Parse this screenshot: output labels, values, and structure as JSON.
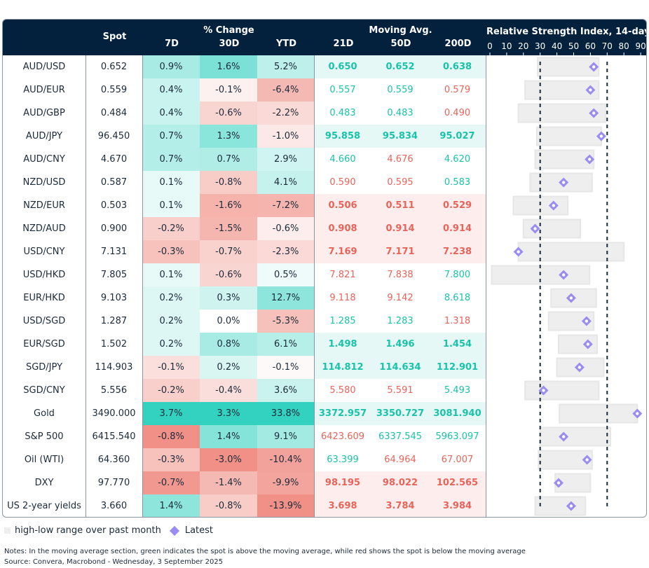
{
  "header": {
    "spot": "Spot",
    "pct_change": "% Change",
    "d7": "7D",
    "d30": "30D",
    "ytd": "YTD",
    "moving_avg": "Moving Avg.",
    "ma21": "21D",
    "ma50": "50D",
    "ma200": "200D",
    "rsi_title": "Relative Strength Index, 14-day"
  },
  "colors": {
    "positive": "#33d1c0",
    "negative": "#ef8a80",
    "ma_above_text": "#19c3a8",
    "ma_below_text": "#e8645a",
    "ma_above_bg": "#e6f8f6",
    "ma_below_bg": "#fdeeed",
    "range_bar": "#eeeeee",
    "latest_marker": "#9a8cf0",
    "header_bg": "#03203c"
  },
  "chart_data": {
    "type": "table",
    "title": "Relative Strength Index, 14-day",
    "xlim": [
      0,
      90
    ],
    "xticks": [
      "0",
      "10",
      "20",
      "30",
      "40",
      "50",
      "60",
      "70",
      "80",
      "90"
    ],
    "reference_lines": [
      30,
      70
    ],
    "rows": [
      {
        "name": "AUD/USD",
        "spot": "0.652",
        "d7": "0.9%",
        "d30": "1.6%",
        "ytd": "5.2%",
        "ma21": "0.650",
        "ma50": "0.652",
        "ma200": "0.638",
        "rsi_low": 28.5,
        "rsi_high": 65,
        "rsi_latest": 62
      },
      {
        "name": "AUD/EUR",
        "spot": "0.559",
        "d7": "0.4%",
        "d30": "-0.1%",
        "ytd": "-6.4%",
        "ma21": "0.557",
        "ma50": "0.559",
        "ma200": "0.579",
        "rsi_low": 21,
        "rsi_high": 65,
        "rsi_latest": 60
      },
      {
        "name": "AUD/GBP",
        "spot": "0.484",
        "d7": "0.4%",
        "d30": "-0.6%",
        "ytd": "-2.2%",
        "ma21": "0.483",
        "ma50": "0.483",
        "ma200": "0.490",
        "rsi_low": 17,
        "rsi_high": 69,
        "rsi_latest": 62
      },
      {
        "name": "AUD/JPY",
        "spot": "96.450",
        "d7": "0.7%",
        "d30": "1.3%",
        "ytd": "-1.0%",
        "ma21": "95.858",
        "ma50": "95.834",
        "ma200": "95.027",
        "rsi_low": 28,
        "rsi_high": 66.5,
        "rsi_latest": 66.5
      },
      {
        "name": "AUD/CNY",
        "spot": "4.670",
        "d7": "0.7%",
        "d30": "0.7%",
        "ytd": "2.9%",
        "ma21": "4.660",
        "ma50": "4.676",
        "ma200": "4.620",
        "rsi_low": 27,
        "rsi_high": 62,
        "rsi_latest": 59.5
      },
      {
        "name": "NZD/USD",
        "spot": "0.587",
        "d7": "0.1%",
        "d30": "-0.8%",
        "ytd": "4.1%",
        "ma21": "0.590",
        "ma50": "0.595",
        "ma200": "0.583",
        "rsi_low": 24,
        "rsi_high": 61,
        "rsi_latest": 44
      },
      {
        "name": "NZD/EUR",
        "spot": "0.503",
        "d7": "0.1%",
        "d30": "-1.6%",
        "ytd": "-7.2%",
        "ma21": "0.506",
        "ma50": "0.511",
        "ma200": "0.529",
        "rsi_low": 14,
        "rsi_high": 46.5,
        "rsi_latest": 38
      },
      {
        "name": "NZD/AUD",
        "spot": "0.900",
        "d7": "-0.2%",
        "d30": "-1.5%",
        "ytd": "-0.6%",
        "ma21": "0.908",
        "ma50": "0.914",
        "ma200": "0.914",
        "rsi_low": 20,
        "rsi_high": 54,
        "rsi_latest": 27
      },
      {
        "name": "USD/CNY",
        "spot": "7.131",
        "d7": "-0.3%",
        "d30": "-0.7%",
        "ytd": "-2.3%",
        "ma21": "7.169",
        "ma50": "7.171",
        "ma200": "7.238",
        "rsi_low": 17,
        "rsi_high": 80,
        "rsi_latest": 17
      },
      {
        "name": "USD/HKD",
        "spot": "7.805",
        "d7": "0.1%",
        "d30": "-0.6%",
        "ytd": "0.5%",
        "ma21": "7.821",
        "ma50": "7.838",
        "ma200": "7.800",
        "rsi_low": 1,
        "rsi_high": 59.5,
        "rsi_latest": 44
      },
      {
        "name": "EUR/HKD",
        "spot": "9.103",
        "d7": "0.2%",
        "d30": "0.3%",
        "ytd": "12.7%",
        "ma21": "9.118",
        "ma50": "9.142",
        "ma200": "8.618",
        "rsi_low": 36.5,
        "rsi_high": 63.5,
        "rsi_latest": 48.5
      },
      {
        "name": "USD/SGD",
        "spot": "1.287",
        "d7": "0.2%",
        "d30": "0.0%",
        "ytd": "-5.3%",
        "ma21": "1.285",
        "ma50": "1.283",
        "ma200": "1.318",
        "rsi_low": 35,
        "rsi_high": 62,
        "rsi_latest": 57.7
      },
      {
        "name": "EUR/SGD",
        "spot": "1.502",
        "d7": "0.2%",
        "d30": "0.8%",
        "ytd": "6.1%",
        "ma21": "1.498",
        "ma50": "1.496",
        "ma200": "1.454",
        "rsi_low": 41,
        "rsi_high": 64,
        "rsi_latest": 58.5
      },
      {
        "name": "SGD/JPY",
        "spot": "114.903",
        "d7": "-0.1%",
        "d30": "0.2%",
        "ytd": "-0.1%",
        "ma21": "114.812",
        "ma50": "114.634",
        "ma200": "112.901",
        "rsi_low": 40,
        "rsi_high": 68,
        "rsi_latest": 53.5
      },
      {
        "name": "SGD/CNY",
        "spot": "5.556",
        "d7": "-0.2%",
        "d30": "-0.4%",
        "ytd": "3.6%",
        "ma21": "5.580",
        "ma50": "5.591",
        "ma200": "5.493",
        "rsi_low": 21,
        "rsi_high": 65,
        "rsi_latest": 32
      },
      {
        "name": "Gold",
        "spot": "3490.000",
        "d7": "3.7%",
        "d30": "3.3%",
        "ytd": "33.8%",
        "ma21": "3372.957",
        "ma50": "3350.727",
        "ma200": "3081.940",
        "rsi_low": 41.5,
        "rsi_high": 88,
        "rsi_latest": 88
      },
      {
        "name": "S&P 500",
        "spot": "6415.540",
        "d7": "-0.8%",
        "d30": "1.4%",
        "ytd": "9.1%",
        "ma21": "6423.609",
        "ma50": "6337.545",
        "ma200": "5963.097",
        "rsi_low": 30,
        "rsi_high": 72,
        "rsi_latest": 44
      },
      {
        "name": "Oil (WTI)",
        "spot": "64.360",
        "d7": "-0.3%",
        "d30": "-3.0%",
        "ytd": "-10.4%",
        "ma21": "63.399",
        "ma50": "64.964",
        "ma200": "67.007",
        "rsi_low": 29,
        "rsi_high": 61,
        "rsi_latest": 58
      },
      {
        "name": "DXY",
        "spot": "97.770",
        "d7": "-0.7%",
        "d30": "-1.4%",
        "ytd": "-9.9%",
        "ma21": "98.195",
        "ma50": "98.022",
        "ma200": "102.565",
        "rsi_low": 39,
        "rsi_high": 60,
        "rsi_latest": 41
      },
      {
        "name": "US 2-year yields",
        "spot": "3.660",
        "d7": "1.4%",
        "d30": "-0.8%",
        "ytd": "-13.9%",
        "ma21": "3.698",
        "ma50": "3.784",
        "ma200": "3.984",
        "rsi_low": 27,
        "rsi_high": 57,
        "rsi_latest": 48.5
      }
    ]
  },
  "legend": {
    "range": "high-low range over past month",
    "latest": "Latest"
  },
  "notes": {
    "note": "Notes: In the moving average section, green indicates the spot is above the moving average, while red shows the spot is below the moving average",
    "source": "Source: Convera, Macrobond - Wednesday, 3 September 2025"
  }
}
